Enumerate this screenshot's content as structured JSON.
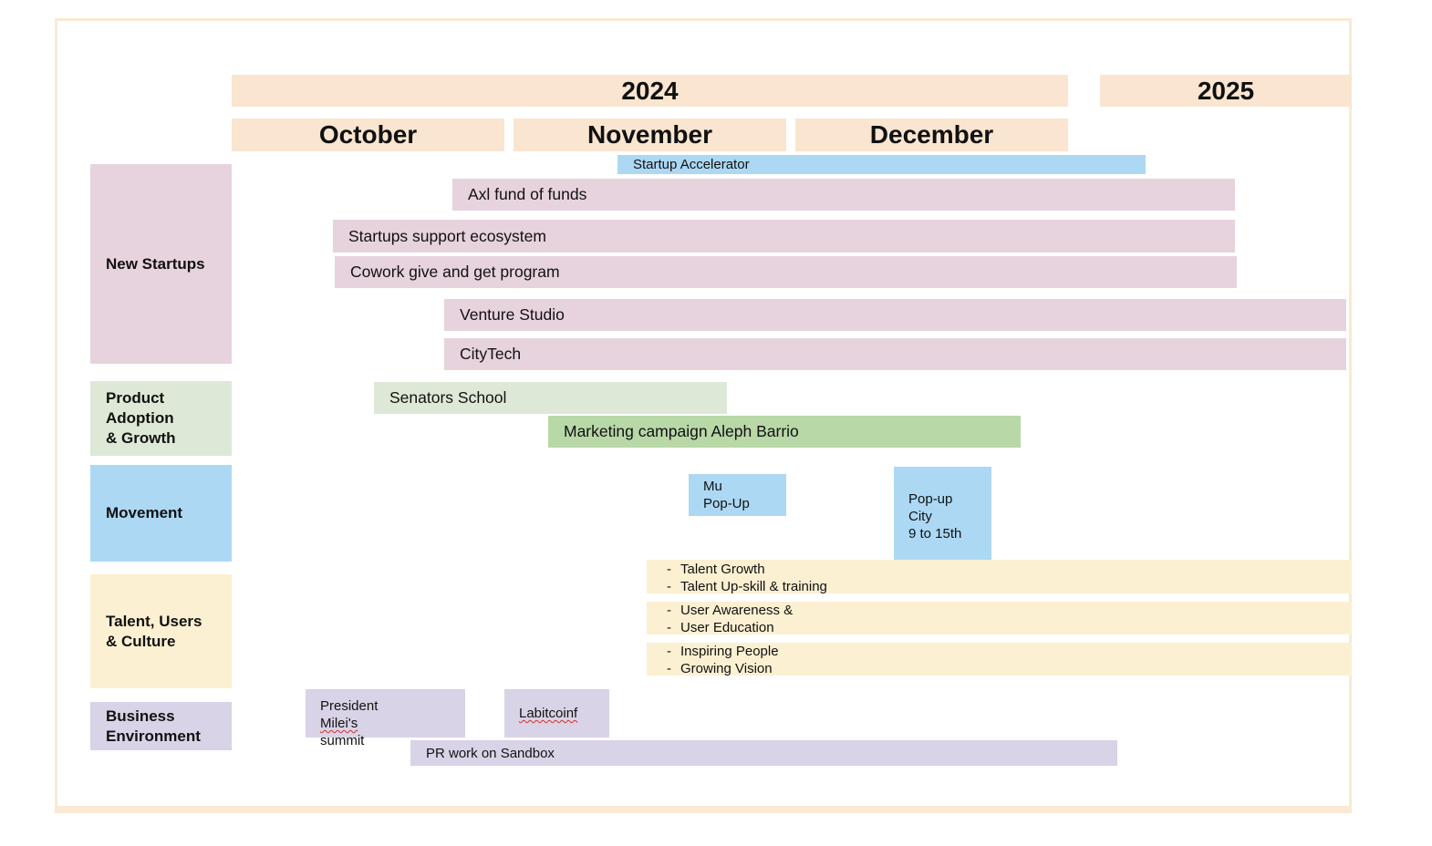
{
  "timeline": {
    "years": [
      "2024",
      "2025"
    ],
    "months": [
      "October",
      "November",
      "December"
    ]
  },
  "categories": [
    {
      "label": "New Startups"
    },
    {
      "label": "Product Adoption & Growth",
      "lines": [
        "Product",
        "Adoption",
        "& Growth"
      ]
    },
    {
      "label": "Movement"
    },
    {
      "label": "Talent, Users & Culture",
      "lines": [
        "Talent, Users",
        "& Culture"
      ]
    },
    {
      "label": "Business Environment",
      "lines": [
        "Business",
        "Environment"
      ]
    }
  ],
  "bars": {
    "startup_accelerator": "Startup Accelerator",
    "axl_fund": "Axl fund of funds",
    "startups_support": "Startups support ecosystem",
    "cowork": "Cowork give and get program",
    "venture_studio": "Venture Studio",
    "citytech": "CityTech",
    "senators_school": "Senators School",
    "marketing_campaign": "Marketing campaign Aleph Barrio",
    "mu_popup": [
      "Mu",
      "Pop-Up"
    ],
    "popup_city": [
      "Pop-up",
      "City",
      "9 to 15th"
    ],
    "talent_growth": [
      "Talent Growth",
      "Talent Up-skill & training"
    ],
    "user_awareness": [
      "User Awareness &",
      "User Education"
    ],
    "inspiring": [
      "Inspiring People",
      "Growing Vision"
    ],
    "milei_summit": [
      "President ",
      "Milei's",
      "summit"
    ],
    "labitcoinf": "Labitcoinf",
    "pr_work": "PR work on Sandbox"
  },
  "colors": {
    "header": "#f9e5d0",
    "new_startups": "#e7d3dd",
    "movement": "#acd8f4",
    "product_light": "#dde9d6",
    "product_dark": "#b8d8a7",
    "talent": "#fcf0d2",
    "business": "#d9d3e7"
  }
}
